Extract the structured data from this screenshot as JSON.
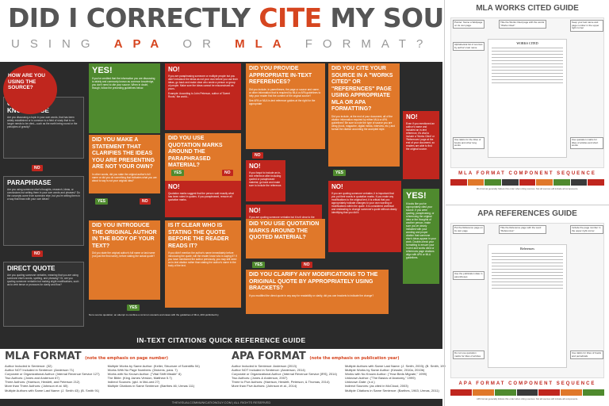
{
  "header": {
    "title_a": "DID I CORRECTLY ",
    "title_b": "CITE",
    "title_c": " MY SOURCES",
    "sub_a": "USING ",
    "sub_b": "APA",
    "sub_c": " OR ",
    "sub_d": "MLA",
    "sub_e": " FORMAT?"
  },
  "left": {
    "start": "HOW ARE YOU USING THE SOURCE?",
    "common_title": "COMMON KNOWLEDGE",
    "common_text": "Are you discussing a topic in your own words, that has been widely established or is common to a field of study that is no longer needs to be cited—such as the earth being round or the principles of gravity?",
    "para_title": "PARAPHRASE",
    "para_text": "Are you using someone else's thoughts, research, ideas, or conclusions but writing them in your own words and phrases? Do the concepts come from someone else, but you're writing them in a way that flows with your own ideas?",
    "direct_title": "DIRECT QUOTE",
    "direct_text": "Are you quoting someone verbatim, meaning that you are using someone else's words, spelling, and phrasing? Or, are you quoting someone verbatim but making slight modifications, such as to verb tense or pronouns for clarity and flow?"
  },
  "labels": {
    "yes": "YES",
    "no": "NO",
    "yes_big": "YES!",
    "no_big": "NO!"
  },
  "flow": {
    "q1": "DID YOU MAKE A STATEMENT THAT CLARIFIES THE IDEAS YOU ARE PRESENTING ARE NOT YOUR OWN?",
    "q1_text": "In other words, did you state the original author's full name or did you do something that indicates what you are about to say is not your original idea?",
    "yes1_text": "If you've credited that the information you are discussing is widely and commonly known as common knowledge, you don't need to cite your source. When in doubt, though, follow the preceding guidelines below.",
    "no1_text": "If you are paraphrasing someone or multiple people but you didn't introduce the ideas as not your own before you use their ideas, go back and make clear who wrote a person or group of people. Make sure the ideas cannot be misconstrued as yours.",
    "no1_example": "Example: According to John Peterson, author of 'Sweet Roots,' the world...",
    "q2": "DID YOU USE QUOTATION MARKS AROUND THE PARAPHRASED MATERIAL?",
    "no2_text": "Quotation marks suggest that the person said exactly what has been noted in quotes. If you paraphrased, remove all quotation marks.",
    "q3": "DID YOU INTRODUCE THE ORIGINAL AUTHOR IN THE BODY OF YOUR TEXT?",
    "q3_text": "Did you state the original author's full name or last name (not just the first name), before stating the actual quote?",
    "q4": "IS IT CLEAR WHO IS STATING THE QUOTE BEFORE THE READER READS IT?",
    "q4_text": "If you didn't mention the author's name immediately before introducing the quote, will the reader know who is saying it? If you have mentioned the author previously, you may still need an in-text citation rather than stating the author's name in the body of the text.",
    "q5": "DID YOU PROVIDE APPROPRIATE IN-TEXT REFERENCES?",
    "q5_text": "Did you include, in parentheses, the page or source and name, or other information that is required by MLA or APA guidelines to help your reader find the content of the original source?",
    "q5_see": "See APA or MLA in-text reference guides at the right for the appropriate",
    "no3_text": "If you forgot to include an in-text reference after including quoted or paraphrased material, go back and make sure to include the reference.",
    "no4_text": "If you are quoting someone verbatim but it isn't clear to the reader who is saying it before you include it, go back and find a way to introduce the author of the original quote before you quote it.",
    "q6": "DID YOU CITE YOUR SOURCE IN A \"WORKS CITED\" OR \"REFERENCES\" PAGE USING APPROPRIATE MLA OR APA FORMATTING?",
    "q6_text": "Did you include, at the end of your document, all of the citation information required by either MLA or APA guidelines? Be sure to note the type of source you are citing (book, magazine, digital media, interview, etc.) and format the citation according the accepted style.",
    "no5_text": "Even if you mentioned an author's name and included an in-text reference, it's vital to include a 'Works Cited' or 'References' page at the end of your document, so readers are able to find the original source.",
    "no6_text": "If you are quoting someone verbatim, it is important that you put their words in quotation marks. If you make any modifications to the original text, it is critical that you appropriately indicate changes to your own wording or modifications within the quote. It is considered unethical and misleading to change someone's quote without clearly identifying that you did it.",
    "q7": "DID YOU USE QUOTATION MARKS AROUND THE QUOTED MATERIAL?",
    "q8": "DID YOU CLARIFY ANY MODIFICATIONS TO THE ORIGINAL QUOTE BY APPROPRIATELY USING BRACKETS?",
    "q8_text": "If you modified the direct quote in any way for readability or clarity, did you use brackets to indicate the change?",
    "yes_final_text": "It looks like you've appropriately cited your source. If you were quoting, paraphrasing, or referencing the original idea or the thoughts of another person, make sure you've clearly indicated with your wording and proper citation that someone else's ideas appear in your work. Double-check your formatting to ensure your in-text and works cited or references page citations align with APA or MLA guidelines.",
    "note": "Not a source quotation; an attempt to combine a common scenario and cases with the guidelines of MLA, APA published by"
  },
  "quickref": {
    "title": "IN-TEXT CITATIONS QUICK REFERENCE GUIDE",
    "mla_title": "MLA FORMAT",
    "mla_note": "(note the emphasis on page number)",
    "mla_items": [
      "Author Included in Sentence: (32)",
      "Author NOT Included in Sentence: (Anderson 71)",
      "Corporate or Organizational Author: (Internal Revenue Service 127)",
      "Two Authors: (Jones and Anderson 67)",
      "Three Authors: (Harrison, Hewlett, and Peterson 212)",
      "More than Three Authors: (Johnson et al. 65)",
      "Multiple Authors with Same Last Name: (J. Smith 43); (B. Smith 91)"
    ],
    "mla_items2": [
      "Multiple Works by Same Author: (Keller, Structure of Scientific 54)",
      "Works With No Page Numbers: (Dickens, para. 7)",
      "Works with No Known Author: (\"Vital Shift Missile\" 8)",
      "The Bible: (King James Version, Matthew 5.7)",
      "Indirect Sources: (qtd. in McLoed 27)",
      "Multiple Citations in Same Sentence: (Barthes 46; Urmas 111)"
    ],
    "apa_title": "APA FORMAT",
    "apa_note": "(note the emphasis on publication year)",
    "apa_items": [
      "Author Included in Sentence: Anderson (2013)",
      "Author NOT Included in Sentence: (Anderson, 2014)",
      "Corporate or Organizational Author: (Internal Revenue Service [IRS], 2014)",
      "Two Authors: (Jones & Anderson, 2007)",
      "Three to Five Authors: (Harrison, Hewlett, Peterson, & Thomas, 2014)",
      "More than Five Authors: (Johnson et al., 2014)"
    ],
    "apa_items2": [
      "Multiple Authors with Same Last Name: (J. Smith, 2003); (B. Smith, 1991)",
      "Multiple Works by Same Author: (Kessler, 2010a, 2010b)",
      "Works with No Known Author: (\"How Birds Migrate,\" 1999)",
      "Unknown Author: (\"The Basics of Anatomy,\" 1999)",
      "Unknown Date: (n.d.)",
      "Indirect Sources: (as cited in McCloud, 2003)",
      "Multiple Citations in Same Sentence: (Barthes, 1963; Urmas, 2011)"
    ]
  },
  "footer": "THEVISUALCOMMUNICATIONGUY.COM | ALL RIGHTS RESERVED",
  "mla_guide": {
    "title": "MLA WORKS CITED GUIDE",
    "paper_title": "WORKS CITED",
    "seq_title": "MLA FORMAT COMPONENT SEQUENCE",
    "seq_text": "MLA format generally follows this order when citing sources. Not all sources will include all components.",
    "ann1": "Pointer: Name a Webpage on its own page.",
    "ann2": "Alphabetical list of sources by author's last name",
    "ann3": "Title the Works Cited page with the words \"Works Cited\"",
    "ann4": "Keep your last name and page number in the upper right corner",
    "ann5": "Use italics for the titles of books and other long works",
    "ann6": "Use quotation marks for titles of articles and short works"
  },
  "apa_guide": {
    "title": "APA REFERENCES GUIDE",
    "paper_title": "References",
    "seq_title": "APA FORMAT COMPONENT SEQUENCE",
    "seq_text": "APA format generally follows this order when citing sources. Not all sources will include all components.",
    "ann1": "Put the Reference page on its own page",
    "ann2": "Title the Reference page with the word \"References\"",
    "ann3": "Include the page number in the upper right corner",
    "ann4": "Use the publication date in parentheses",
    "ann5": "Do not use quotation marks for titles of articles",
    "ann6": "Use italics for titles of books and periodicals"
  },
  "colors": {
    "accent": "#d6451f",
    "red": "#c0261e",
    "orange": "#e0782a",
    "green": "#4f8a2e",
    "dark": "#2b2b2b"
  }
}
